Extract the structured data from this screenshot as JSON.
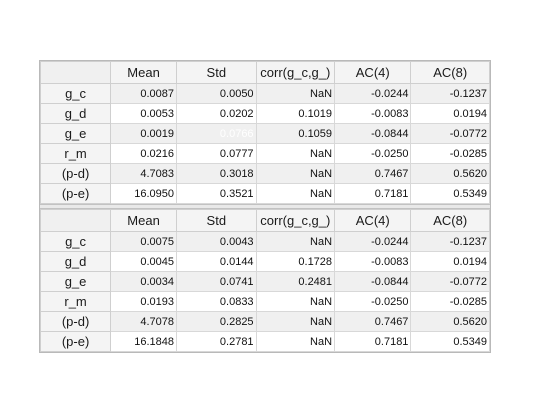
{
  "columns": [
    "Mean",
    "Std",
    "corr(g_c,g_)",
    "AC(4)",
    "AC(8)"
  ],
  "sections": [
    {
      "rows": [
        {
          "label": "g_c",
          "values": [
            "0.0087",
            "0.0050",
            "NaN",
            "-0.0244",
            "-0.1237"
          ]
        },
        {
          "label": "g_d",
          "values": [
            "0.0053",
            "0.0202",
            "0.1019",
            "-0.0083",
            "0.0194"
          ]
        },
        {
          "label": "g_e",
          "values": [
            "0.0019",
            "0.0766",
            "0.1059",
            "-0.0844",
            "-0.0772"
          ]
        },
        {
          "label": "r_m",
          "values": [
            "0.0216",
            "0.0777",
            "NaN",
            "-0.0250",
            "-0.0285"
          ]
        },
        {
          "label": "(p-d)",
          "values": [
            "4.7083",
            "0.3018",
            "NaN",
            "0.7467",
            "0.5620"
          ]
        },
        {
          "label": "(p-e)",
          "values": [
            "16.0950",
            "0.3521",
            "NaN",
            "0.7181",
            "0.5349"
          ]
        }
      ]
    },
    {
      "rows": [
        {
          "label": "g_c",
          "values": [
            "0.0075",
            "0.0043",
            "NaN",
            "-0.0244",
            "-0.1237"
          ]
        },
        {
          "label": "g_d",
          "values": [
            "0.0045",
            "0.0144",
            "0.1728",
            "-0.0083",
            "0.0194"
          ]
        },
        {
          "label": "g_e",
          "values": [
            "0.0034",
            "0.0741",
            "0.2481",
            "-0.0844",
            "-0.0772"
          ]
        },
        {
          "label": "r_m",
          "values": [
            "0.0193",
            "0.0833",
            "NaN",
            "-0.0250",
            "-0.0285"
          ]
        },
        {
          "label": "(p-d)",
          "values": [
            "4.7078",
            "0.2825",
            "NaN",
            "0.7467",
            "0.5620"
          ]
        },
        {
          "label": "(p-e)",
          "values": [
            "16.1848",
            "0.2781",
            "NaN",
            "0.7181",
            "0.5349"
          ]
        }
      ]
    }
  ],
  "selected_cell": {
    "section": 0,
    "row": 2,
    "col": 1
  },
  "colors": {
    "selection": "#1a74d2",
    "alt_row": "#f0f0f0",
    "header_bg": "#f4f4f4"
  }
}
